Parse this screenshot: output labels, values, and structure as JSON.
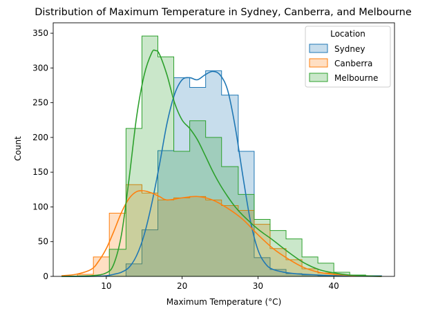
{
  "chart_data": {
    "type": "histogram",
    "title": "Distribution of Maximum Temperature in Sydney, Canberra, and Melbourne",
    "xlabel": "Maximum Temperature (°C)",
    "ylabel": "Count",
    "xlim": [
      3,
      48
    ],
    "ylim": [
      0,
      365
    ],
    "xticks": [
      10,
      20,
      30,
      40
    ],
    "yticks": [
      0,
      50,
      100,
      150,
      200,
      250,
      300,
      350
    ],
    "grid": false,
    "legend": {
      "title": "Location",
      "placement": "top-right"
    },
    "bin_edges": [
      4.1,
      6.2,
      8.3,
      10.4,
      12.6,
      14.7,
      16.8,
      18.9,
      21.0,
      23.1,
      25.2,
      27.4,
      29.5,
      31.6,
      33.7,
      35.8,
      37.9,
      40.0,
      42.1,
      44.2,
      46.3
    ],
    "series": [
      {
        "name": "Sydney",
        "color": "#1f77b4",
        "counts": [
          0,
          0,
          0,
          0,
          18,
          67,
          181,
          286,
          272,
          296,
          261,
          180,
          27,
          10,
          4,
          2,
          1,
          0,
          0,
          1
        ],
        "kde_x": [
          4.1,
          8,
          10,
          11,
          12,
          13,
          14,
          15,
          16,
          17,
          18,
          19,
          20,
          21,
          22,
          23,
          24,
          25,
          26,
          27,
          28,
          29,
          30,
          31,
          32,
          34,
          36,
          40,
          46.3
        ],
        "kde_y": [
          0,
          0,
          1,
          3,
          6,
          13,
          30,
          60,
          105,
          160,
          220,
          262,
          283,
          286,
          283,
          290,
          295,
          290,
          268,
          215,
          145,
          80,
          38,
          18,
          10,
          5,
          3,
          1,
          0
        ]
      },
      {
        "name": "Canberra",
        "color": "#ff7f0e",
        "counts": [
          0,
          3,
          28,
          91,
          132,
          120,
          110,
          113,
          115,
          110,
          102,
          95,
          75,
          40,
          24,
          11,
          5,
          2,
          0,
          0
        ],
        "kde_x": [
          4.1,
          6,
          8,
          9,
          10,
          11,
          12,
          13,
          14,
          15,
          16,
          17,
          18,
          20,
          22,
          24,
          26,
          28,
          30,
          32,
          34,
          36,
          38,
          40,
          43,
          46.3
        ],
        "kde_y": [
          1,
          3,
          10,
          22,
          40,
          65,
          92,
          112,
          122,
          123,
          120,
          115,
          110,
          113,
          115,
          110,
          98,
          82,
          60,
          40,
          25,
          13,
          6,
          3,
          1,
          0
        ],
        "kde_color": "#ff7f0e"
      },
      {
        "name": "Melbourne",
        "color": "#2ca02c",
        "counts": [
          0,
          0,
          0,
          39,
          213,
          346,
          316,
          180,
          224,
          200,
          158,
          118,
          82,
          66,
          54,
          28,
          19,
          6,
          2,
          0
        ],
        "kde_x": [
          4.1,
          8,
          10,
          11,
          12,
          13,
          14,
          15,
          16,
          16.5,
          17,
          18,
          19,
          20,
          21,
          22,
          23,
          24,
          25,
          26,
          27,
          28,
          30,
          32,
          34,
          36,
          38,
          40,
          42,
          44,
          46.3
        ],
        "kde_y": [
          0,
          1,
          5,
          18,
          60,
          140,
          230,
          290,
          322,
          325,
          320,
          290,
          250,
          225,
          213,
          197,
          175,
          152,
          132,
          115,
          100,
          88,
          68,
          52,
          35,
          20,
          10,
          5,
          2,
          1,
          0
        ]
      }
    ]
  }
}
